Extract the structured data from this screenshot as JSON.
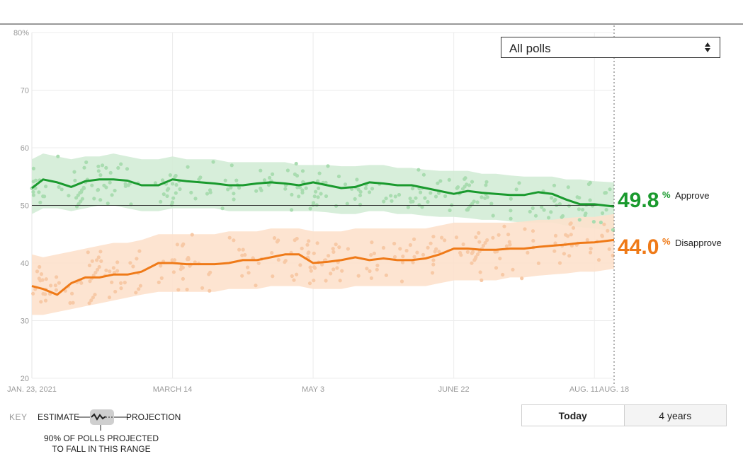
{
  "chart_data": {
    "type": "line",
    "y_ticks": [
      "20",
      "30",
      "40",
      "50",
      "60",
      "70",
      "80%"
    ],
    "ylim": [
      20,
      80
    ],
    "x_ticks": [
      "JAN. 23, 2021",
      "MARCH 14",
      "MAY 3",
      "JUNE 22",
      "AUG. 11",
      "AUG. 18"
    ],
    "reference_line": 50,
    "grid": true,
    "x": [
      "2021-01-23",
      "2021-01-27",
      "2021-02-01",
      "2021-02-06",
      "2021-02-11",
      "2021-02-16",
      "2021-02-21",
      "2021-02-26",
      "2021-03-03",
      "2021-03-09",
      "2021-03-14",
      "2021-03-19",
      "2021-03-24",
      "2021-03-29",
      "2021-04-03",
      "2021-04-08",
      "2021-04-13",
      "2021-04-18",
      "2021-04-23",
      "2021-04-28",
      "2021-05-03",
      "2021-05-08",
      "2021-05-13",
      "2021-05-18",
      "2021-05-23",
      "2021-05-28",
      "2021-06-02",
      "2021-06-07",
      "2021-06-12",
      "2021-06-17",
      "2021-06-22",
      "2021-06-27",
      "2021-07-02",
      "2021-07-07",
      "2021-07-12",
      "2021-07-17",
      "2021-07-22",
      "2021-07-27",
      "2021-08-01",
      "2021-08-06",
      "2021-08-11",
      "2021-08-18"
    ],
    "series": [
      {
        "name": "Approve",
        "color": "#1a9a2e",
        "band_color": "#d3ecd6",
        "values": [
          53.0,
          54.5,
          54.0,
          53.2,
          54.2,
          54.5,
          54.5,
          54.3,
          53.5,
          53.5,
          54.5,
          54.2,
          54.0,
          53.8,
          53.5,
          53.5,
          53.8,
          54.0,
          53.8,
          53.5,
          54.0,
          53.5,
          53.0,
          53.2,
          54.0,
          53.8,
          53.5,
          53.5,
          53.0,
          52.5,
          52.0,
          52.5,
          52.2,
          52.0,
          51.8,
          51.8,
          52.3,
          52.0,
          51.0,
          50.2,
          50.2,
          49.8
        ],
        "band_upper": [
          58,
          59,
          58.5,
          58,
          58.5,
          58.5,
          59,
          58.5,
          58,
          58,
          58.5,
          58,
          58,
          58,
          57.5,
          57.5,
          57.5,
          57.5,
          57.5,
          57,
          57,
          57,
          56.8,
          56.8,
          57,
          57,
          56.5,
          56.5,
          56.2,
          56,
          56,
          56,
          55.5,
          55.5,
          55.2,
          55,
          55,
          55,
          54.5,
          54.5,
          54.2,
          54
        ],
        "band_lower": [
          48.5,
          49.5,
          49.5,
          49,
          49.5,
          50,
          50,
          49.5,
          49,
          49,
          49.5,
          49.5,
          49.5,
          49.5,
          49,
          49,
          49,
          49,
          49,
          49,
          49,
          48.8,
          48.5,
          48.5,
          49,
          49,
          48.5,
          48.5,
          48.2,
          48,
          48,
          47.8,
          47.5,
          47.5,
          47.2,
          47,
          47,
          47,
          46.5,
          46.2,
          46,
          45.5
        ]
      },
      {
        "name": "Disapprove",
        "color": "#ef7a18",
        "band_color": "#fde1cc",
        "values": [
          36.0,
          35.5,
          34.5,
          36.5,
          37.5,
          37.5,
          38.0,
          38.0,
          38.5,
          40.0,
          40.0,
          39.8,
          39.8,
          39.8,
          40.0,
          40.5,
          40.5,
          41.0,
          41.5,
          41.5,
          40.0,
          40.2,
          40.5,
          41.0,
          40.5,
          40.8,
          40.5,
          40.5,
          40.8,
          41.5,
          42.5,
          42.5,
          42.3,
          42.3,
          42.5,
          42.5,
          42.8,
          43.0,
          43.2,
          43.5,
          43.6,
          44.0
        ],
        "band_upper": [
          41.5,
          41,
          41.5,
          42,
          42.5,
          43,
          43.5,
          43.5,
          44,
          45,
          45,
          45,
          45,
          45,
          45.5,
          45.5,
          45.5,
          46,
          46,
          46,
          45.5,
          45.5,
          45.5,
          46,
          46,
          46,
          46,
          46,
          46,
          46.5,
          47,
          47,
          47,
          47,
          47,
          47.2,
          47.5,
          47.5,
          47.8,
          48,
          48,
          48.5
        ],
        "band_lower": [
          31,
          31,
          31.5,
          32,
          32.5,
          33,
          33.5,
          34,
          34.5,
          35,
          35,
          35,
          35,
          35,
          35.5,
          35.5,
          35.5,
          36,
          36,
          36,
          35.5,
          35.5,
          35.5,
          36,
          36,
          36,
          36,
          36,
          36,
          36.5,
          37,
          37,
          37,
          37,
          37.5,
          37.5,
          37.8,
          38,
          38.2,
          38.5,
          38.5,
          39
        ]
      }
    ]
  },
  "labels": {
    "approve_value": "49.8",
    "approve_pct": "%",
    "approve_name": "Approve",
    "disapprove_value": "44.0",
    "disapprove_pct": "%",
    "disapprove_name": "Disapprove"
  },
  "filter": {
    "selected": "All polls"
  },
  "key": {
    "title": "KEY",
    "estimate": "ESTIMATE",
    "projection": "PROJECTION",
    "range_text": "90% OF POLLS PROJECTED TO FALL IN THIS RANGE"
  },
  "toggle": {
    "today": "Today",
    "four_years": "4 years"
  }
}
